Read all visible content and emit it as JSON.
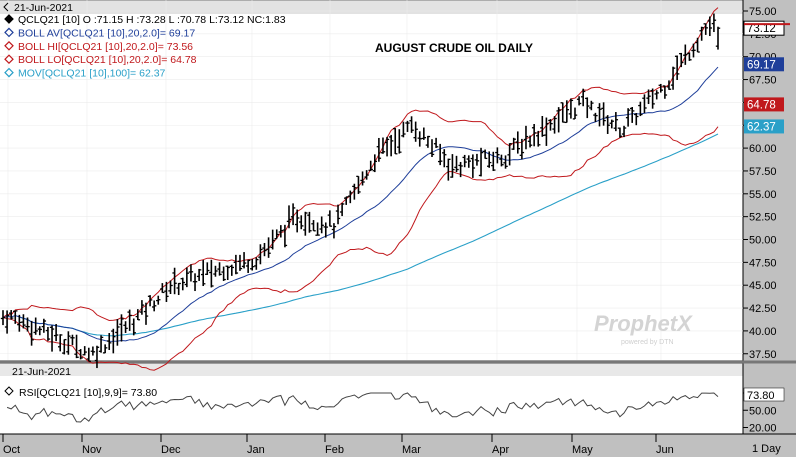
{
  "date_label": "21-Jun-2021",
  "title": "AUGUST CRUDE OIL DAILY",
  "watermark": "ProphetX",
  "watermark_sub": "powered by DTN",
  "price_legend": [
    {
      "text": "QCLQ21 [10] O :71.15 H :73.28 L :70.78 L:73.12 NC:1.83",
      "color": "#000000",
      "icon": "filled-diamond-icon"
    },
    {
      "text": "BOLL AV[QCLQ21 [10],20,2.0]= 69.17",
      "color": "#1f3f9a",
      "icon": "diamond-outline-icon"
    },
    {
      "text": "BOLL HI[QCLQ21 [10],20,2.0]= 73.56",
      "color": "#c0181c",
      "icon": "diamond-outline-icon"
    },
    {
      "text": "BOLL LO[QCLQ21 [10],20,2.0]= 64.78",
      "color": "#c0181c",
      "icon": "diamond-outline-icon"
    },
    {
      "text": "MOV[QCLQ21 [10],100]= 62.37",
      "color": "#2aa0c8",
      "icon": "diamond-outline-icon"
    }
  ],
  "price_badges": [
    {
      "value": "73.12",
      "bg": "#ffffff",
      "fg": "#000000"
    },
    {
      "value": "69.17",
      "bg": "#1f3f9a",
      "fg": "#ffffff"
    },
    {
      "value": "64.78",
      "bg": "#c0181c",
      "fg": "#ffffff"
    },
    {
      "value": "62.37",
      "bg": "#2aa0c8",
      "fg": "#ffffff"
    }
  ],
  "rsi_date_label": "21-Jun-2021",
  "rsi_legend": "RSI[QCLQ21 [10],9,9]= 73.80",
  "rsi_badge": "73.80",
  "bottom_label": "1 Day",
  "chart_data": [
    {
      "type": "candlestick",
      "title": "AUGUST CRUDE OIL DAILY",
      "ylim": [
        36.5,
        75.5
      ],
      "y_ticks": [
        "37.50",
        "40.00",
        "42.50",
        "45.00",
        "47.50",
        "50.00",
        "52.50",
        "55.00",
        "57.50",
        "60.00",
        "62.50",
        "65.00",
        "67.50",
        "70.00",
        "72.50",
        "75.00"
      ],
      "x_ticks": [
        "Oct",
        "Nov",
        "Dec",
        "Jan",
        "Feb",
        "Mar",
        "Apr",
        "May",
        "Jun"
      ],
      "price_anchors": [
        {
          "month": "Oct",
          "close": 41.5
        },
        {
          "month": "Nov",
          "close": 37.5
        },
        {
          "month": "Nov",
          "close": 41.0
        },
        {
          "month": "Dec",
          "close": 45.0
        },
        {
          "month": "Jan",
          "close": 48.0
        },
        {
          "month": "Jan",
          "close": 52.5
        },
        {
          "month": "Feb",
          "close": 51.5
        },
        {
          "month": "Feb",
          "close": 59.0
        },
        {
          "month": "Mar",
          "close": 62.5
        },
        {
          "month": "Mar",
          "close": 58.0
        },
        {
          "month": "Apr",
          "close": 59.0
        },
        {
          "month": "Apr",
          "close": 62.0
        },
        {
          "month": "May",
          "close": 65.0
        },
        {
          "month": "May",
          "close": 62.0
        },
        {
          "month": "Jun",
          "close": 67.0
        },
        {
          "month": "Jun",
          "close": 73.12
        }
      ],
      "series": [
        {
          "name": "QCLQ21 [10]",
          "open": 71.15,
          "high": 73.28,
          "low": 70.78,
          "last": 73.12,
          "net_change": 1.83
        },
        {
          "name": "BOLL AV[QCLQ21 [10],20,2.0]",
          "last": 69.17,
          "color": "#1f3f9a"
        },
        {
          "name": "BOLL HI[QCLQ21 [10],20,2.0]",
          "last": 73.56,
          "color": "#c0181c"
        },
        {
          "name": "BOLL LO[QCLQ21 [10],20,2.0]",
          "last": 64.78,
          "color": "#c0181c"
        },
        {
          "name": "MOV[QCLQ21 [10],100]",
          "last": 62.37,
          "color": "#2aa0c8"
        }
      ]
    },
    {
      "type": "line",
      "ylim": [
        15,
        85
      ],
      "y_ticks": [
        "20.00",
        "50.00",
        "80.00"
      ],
      "series": [
        {
          "name": "RSI[QCLQ21 [10],9,9]",
          "last": 73.8,
          "color": "#444444"
        }
      ]
    }
  ]
}
